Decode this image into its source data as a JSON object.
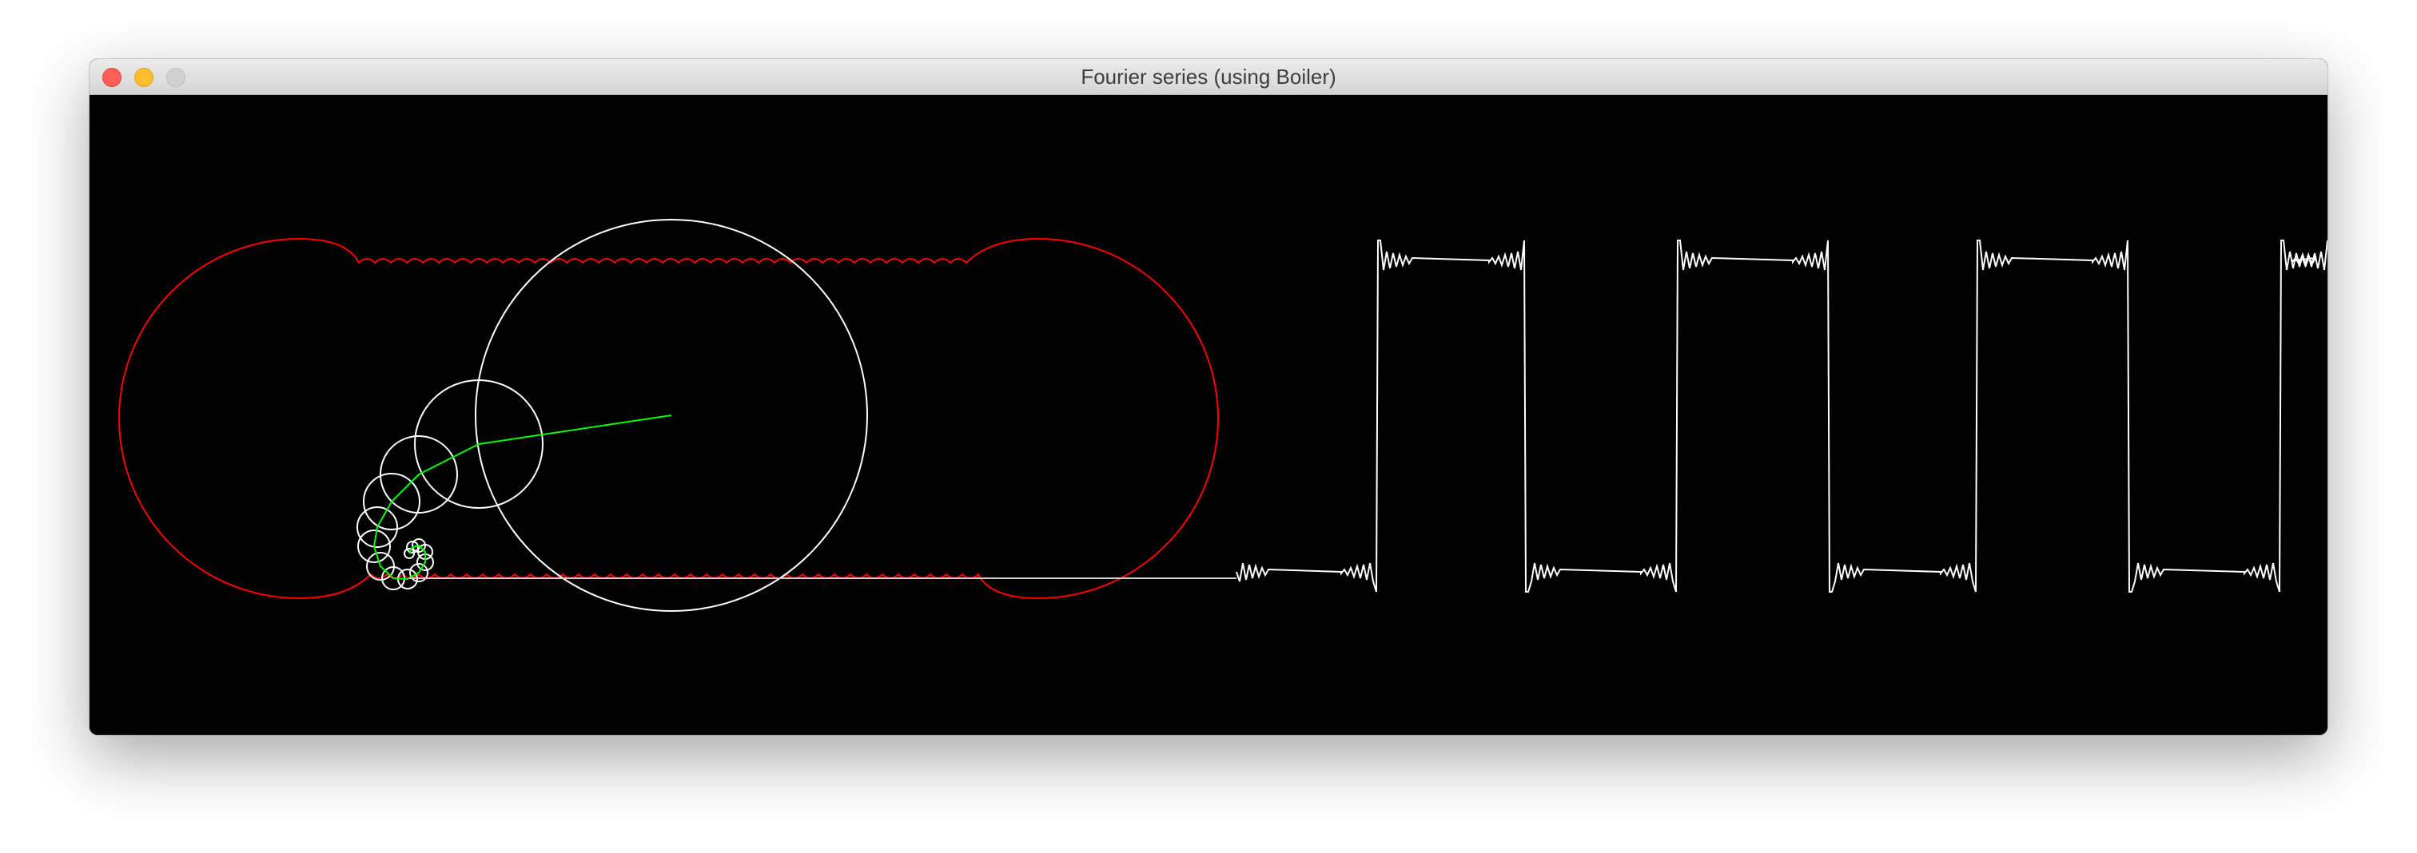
{
  "window": {
    "title": "Fourier series (using Boiler)",
    "buttons": {
      "close": "close-icon",
      "minimize": "minimize-icon",
      "zoom": "zoom-icon"
    }
  },
  "canvas": {
    "background": "#000000",
    "colors": {
      "epicycles": "#ffffff",
      "trace": "#ff0000",
      "arms": "#00ff00",
      "wave": "#ffffff"
    },
    "visualization": "square-wave-fourier-epicycles"
  }
}
